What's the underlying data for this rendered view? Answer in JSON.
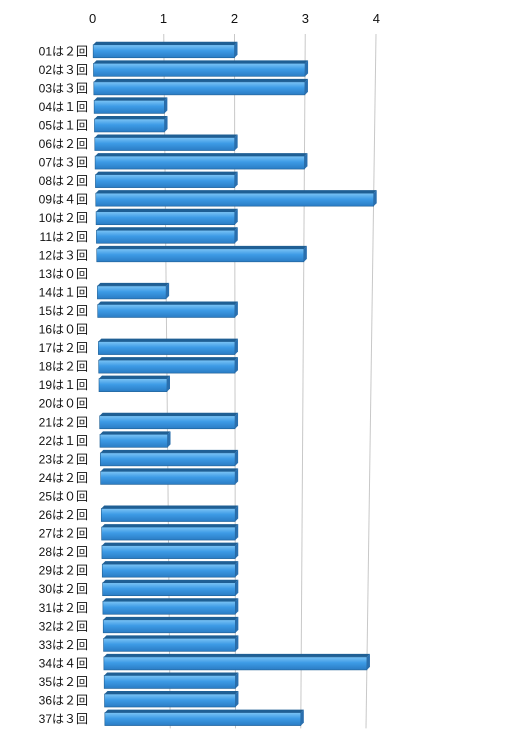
{
  "chart_data": {
    "type": "bar",
    "orientation": "horizontal",
    "categories": [
      "01は２回",
      "02は３回",
      "03は３回",
      "04は１回",
      "05は１回",
      "06は２回",
      "07は３回",
      "08は２回",
      "09は４回",
      "10は２回",
      "11は２回",
      "12は３回",
      "13は０回",
      "14は１回",
      "15は２回",
      "16は０回",
      "17は２回",
      "18は２回",
      "19は１回",
      "20は０回",
      "21は２回",
      "22は１回",
      "23は２回",
      "24は２回",
      "25は０回",
      "26は２回",
      "27は２回",
      "28は２回",
      "29は２回",
      "30は２回",
      "31は２回",
      "32は２回",
      "33は２回",
      "34は４回",
      "35は２回",
      "36は２回",
      "37は３回"
    ],
    "values": [
      2,
      3,
      3,
      1,
      1,
      2,
      3,
      2,
      4,
      2,
      2,
      3,
      0,
      1,
      2,
      0,
      2,
      2,
      1,
      0,
      2,
      1,
      2,
      2,
      0,
      2,
      2,
      2,
      2,
      2,
      2,
      2,
      2,
      4,
      2,
      2,
      3
    ],
    "x_ticks": [
      "0",
      "1",
      "2",
      "3",
      "4"
    ],
    "xlim": [
      0,
      4
    ],
    "grid": true,
    "legend": "none",
    "colors": {
      "bar": "#3d9be6",
      "bar_top": "#7cc4f5",
      "bar_dark": "#1f5f94",
      "grid": "#c8c8c8"
    }
  }
}
